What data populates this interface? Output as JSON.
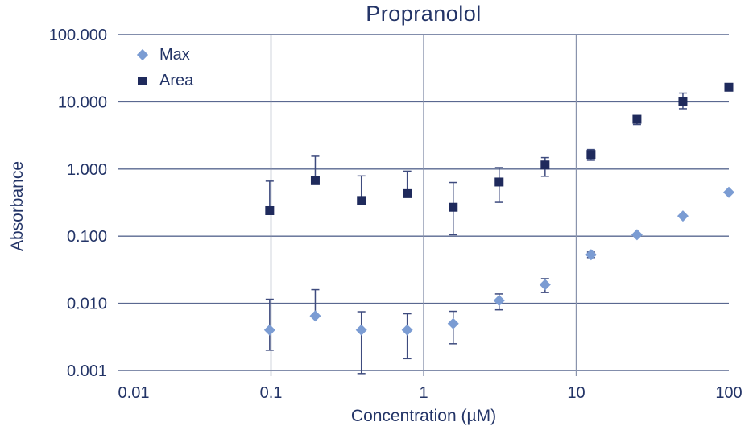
{
  "chart_data": {
    "type": "scatter",
    "title": "Propranolol",
    "xlabel": "Concentration (µM)",
    "ylabel": "Absorbance",
    "x_scale": "log",
    "y_scale": "log",
    "xlim": [
      0.01,
      100
    ],
    "ylim": [
      0.001,
      100
    ],
    "grid": true,
    "x_gridlines": [
      0.1,
      1,
      10
    ],
    "y_gridlines": [
      100,
      10,
      1,
      0.1,
      0.01,
      0.001
    ],
    "x_ticks": [
      {
        "label": "0.01",
        "value": 0.01
      },
      {
        "label": "0.1",
        "value": 0.1
      },
      {
        "label": "1",
        "value": 1
      },
      {
        "label": "10",
        "value": 10
      },
      {
        "label": "100",
        "value": 100
      }
    ],
    "y_ticks": [
      {
        "label": "100.000",
        "value": 100
      },
      {
        "label": "10.000",
        "value": 10
      },
      {
        "label": "1.000",
        "value": 1
      },
      {
        "label": "0.100",
        "value": 0.1
      },
      {
        "label": "0.010",
        "value": 0.01
      },
      {
        "label": "0.001",
        "value": 0.001
      }
    ],
    "legend_position": "top-left-inside",
    "x": [
      0.098,
      0.195,
      0.391,
      0.781,
      1.563,
      3.125,
      6.25,
      12.5,
      25,
      50,
      100
    ],
    "series": [
      {
        "name": "Max",
        "marker": "diamond",
        "color": "#7B9CD3",
        "values": [
          0.004,
          0.0065,
          0.004,
          0.004,
          0.005,
          0.011,
          0.019,
          0.053,
          0.105,
          0.2,
          0.45
        ],
        "err_lo": [
          0.002,
          null,
          0.0009,
          0.0015,
          0.0025,
          0.008,
          0.0145,
          0.048,
          null,
          null,
          null
        ],
        "err_hi": [
          0.0115,
          0.016,
          0.0075,
          0.007,
          0.0076,
          0.0138,
          0.0233,
          0.058,
          null,
          null,
          null
        ]
      },
      {
        "name": "Area",
        "marker": "square",
        "color": "#1F2A5C",
        "values": [
          0.24,
          0.67,
          0.34,
          0.43,
          0.27,
          0.64,
          1.15,
          1.65,
          5.5,
          10.0,
          16.5
        ],
        "err_lo": [
          null,
          null,
          null,
          null,
          0.105,
          0.32,
          0.78,
          1.35,
          4.6,
          7.9,
          null
        ],
        "err_hi": [
          0.66,
          1.55,
          0.79,
          0.93,
          0.63,
          1.05,
          1.48,
          1.95,
          null,
          13.5,
          null
        ]
      }
    ],
    "colors": {
      "text": "#233467",
      "grid_horizontal": "#5A6890",
      "grid_vertical": "#8A94AD",
      "error_bar": "#3E4B7E",
      "max_marker": "#7B9CD3",
      "area_marker": "#1F2A5C"
    }
  }
}
